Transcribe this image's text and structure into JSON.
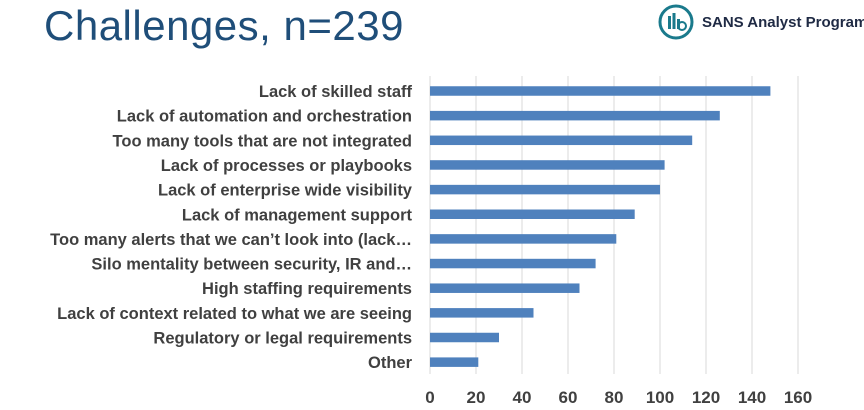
{
  "slide": {
    "title": "Challenges, n=239",
    "logo_text": "SANS Analyst Program",
    "logo_icon": "sans-logo-icon"
  },
  "colors": {
    "title": "#1f4e79",
    "bar": "#4f81bd",
    "grid": "#d9d9d9",
    "label": "#404040"
  },
  "chart_data": {
    "type": "bar",
    "orientation": "horizontal",
    "title": "",
    "xlabel": "",
    "ylabel": "",
    "categories": [
      "Lack of skilled staff",
      "Lack of automation and orchestration",
      "Too many tools that are not integrated",
      "Lack of processes or playbooks",
      "Lack of enterprise wide visibility",
      "Lack of management support",
      "Too many alerts that we can’t look into (lack…",
      "Silo mentality between security, IR and…",
      "High staffing requirements",
      "Lack of context related to what we are seeing",
      "Regulatory or legal requirements",
      "Other"
    ],
    "values": [
      148,
      126,
      114,
      102,
      100,
      89,
      81,
      72,
      65,
      45,
      30,
      21
    ],
    "xlim": [
      0,
      160
    ],
    "xticks": [
      0,
      20,
      40,
      60,
      80,
      100,
      120,
      140,
      160
    ],
    "grid": true,
    "legend": "none"
  }
}
